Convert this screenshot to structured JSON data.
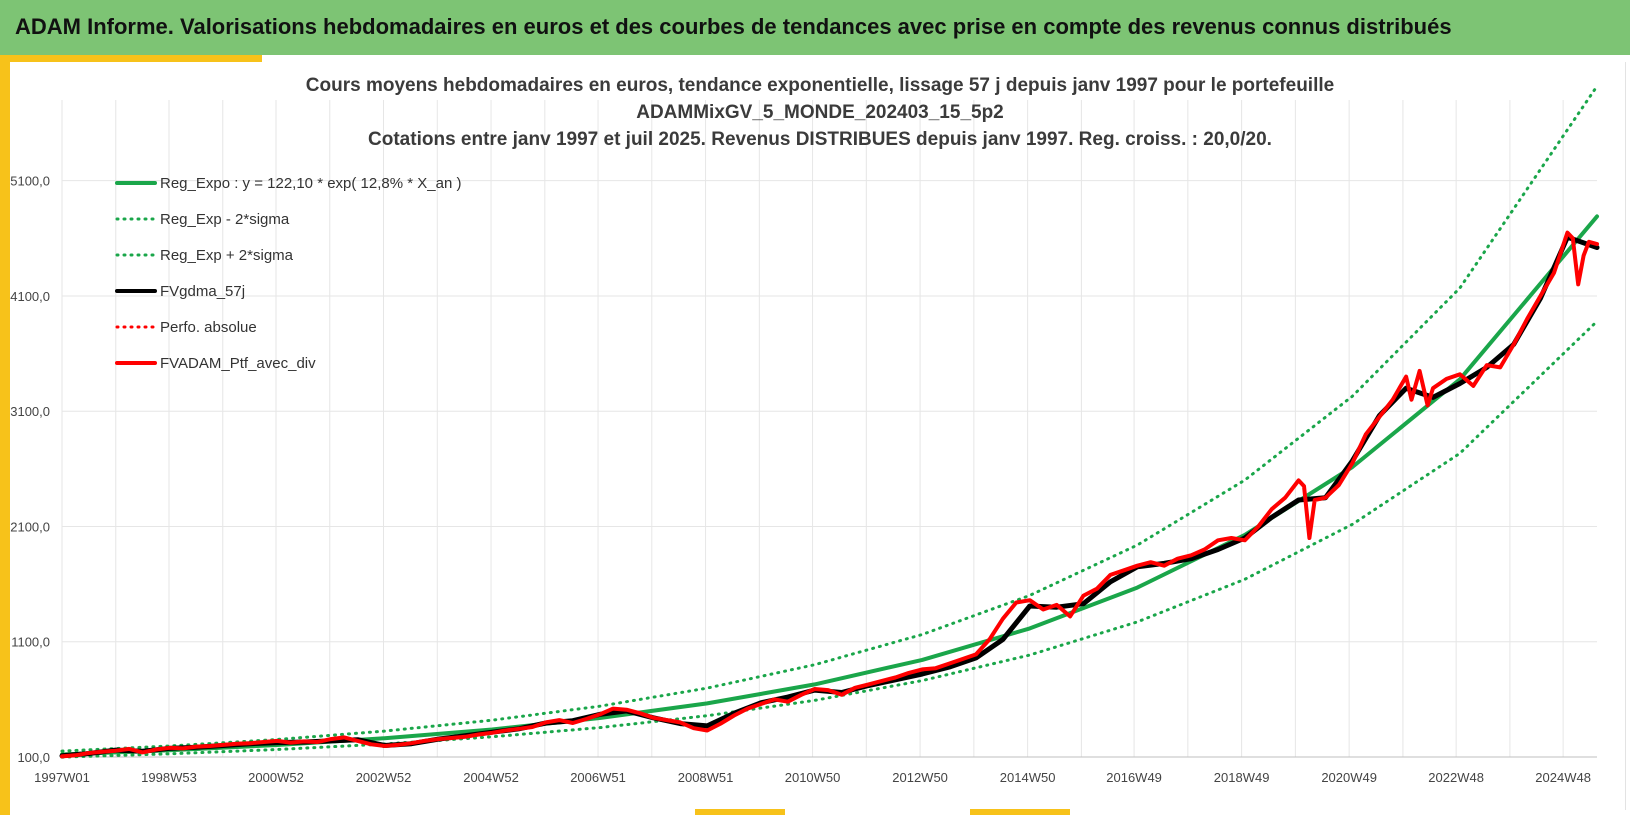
{
  "banner": {
    "title": "ADAM Informe. Valorisations hebdomadaires en euros et des courbes de tendances avec prise en compte des revenus connus distribués"
  },
  "colors": {
    "banner_bg": "#7dc474",
    "accent": "#f7c21a",
    "trend": "#1aa64a",
    "smoothed": "#000000",
    "portfolio": "#ff0000",
    "grid": "#e6e6e6"
  },
  "chart_data": {
    "type": "line",
    "title_lines": [
      "Cours moyens hebdomadaires  en euros, tendance exponentielle, lissage 57 j depuis janv 1997 pour le portefeuille",
      "ADAMMixGV_5_MONDE_202403_15_5p2",
      "Cotations  entre janv 1997 et juil 2025. Revenus DISTRIBUES depuis janv 1997. Reg. croiss. : 20,0/20."
    ],
    "xlabel": "",
    "ylabel": "",
    "x_range": [
      1997.0,
      2025.55
    ],
    "ylim": [
      100,
      5800
    ],
    "y_ticks": [
      100,
      1100,
      2100,
      3100,
      4100,
      5100
    ],
    "y_tick_labels": [
      "100,0",
      "1100,0",
      "2100,0",
      "3100,0",
      "4100,0",
      "5100,0"
    ],
    "x_ticks": [
      1997.0,
      1998.99,
      2000.98,
      2002.98,
      2004.98,
      2006.97,
      2008.97,
      2010.96,
      2012.96,
      2014.96,
      2016.94,
      2018.94,
      2020.94,
      2022.93,
      2024.92
    ],
    "x_tick_labels": [
      "1997W01",
      "1998W53",
      "2000W52",
      "2002W52",
      "2004W52",
      "2006W51",
      "2008W51",
      "2010W50",
      "2012W50",
      "2014W50",
      "2016W49",
      "2018W49",
      "2020W49",
      "2022W48",
      "2024W48"
    ],
    "grid": true,
    "legend_position": "top-left",
    "legend": [
      {
        "label": "Reg_Expo : y = 122,10 * exp( 12,8% *  X_an )",
        "style": "solid",
        "color": "#1aa64a",
        "width": 4
      },
      {
        "label": "Reg_Exp - 2*sigma",
        "style": "dotted",
        "color": "#1aa64a",
        "width": 3
      },
      {
        "label": "Reg_Exp + 2*sigma",
        "style": "dotted",
        "color": "#1aa64a",
        "width": 3
      },
      {
        "label": "FVgdma_57j",
        "style": "solid",
        "color": "#000000",
        "width": 4
      },
      {
        "label": "Perfo. absolue",
        "style": "dotted",
        "color": "#ff0000",
        "width": 3
      },
      {
        "label": "FVADAM_Ptf_avec_div",
        "style": "solid",
        "color": "#ff0000",
        "width": 4
      }
    ],
    "series": [
      {
        "name": "Reg_Expo : y = 122,10 * exp( 12,8% *  X_an )",
        "x": [
          1997,
          1999,
          2001,
          2003,
          2005,
          2007,
          2009,
          2011,
          2013,
          2015,
          2017,
          2019,
          2021,
          2023,
          2025.55
        ],
        "values": [
          122,
          158,
          204,
          263,
          339,
          438,
          565,
          730,
          942,
          1216,
          1570,
          2027,
          2616,
          3377,
          4790
        ]
      },
      {
        "name": "Reg_Exp - 2*sigma",
        "x": [
          1997,
          1999,
          2001,
          2003,
          2005,
          2007,
          2009,
          2011,
          2013,
          2015,
          2017,
          2019,
          2021,
          2023,
          2025.55
        ],
        "values": [
          99,
          128,
          165,
          213,
          275,
          355,
          458,
          591,
          763,
          985,
          1272,
          1642,
          2119,
          2735,
          3880
        ]
      },
      {
        "name": "Reg_Exp + 2*sigma",
        "x": [
          1997,
          1999,
          2001,
          2003,
          2005,
          2007,
          2009,
          2011,
          2013,
          2015,
          2017,
          2019,
          2021,
          2023,
          2025.55
        ],
        "values": [
          151,
          195,
          252,
          325,
          419,
          541,
          698,
          901,
          1163,
          1502,
          1938,
          2502,
          3230,
          4169,
          5920
        ]
      },
      {
        "name": "FVgdma_57j",
        "x": [
          1997.0,
          1997.5,
          1998.0,
          1998.5,
          1999.0,
          1999.5,
          2000.0,
          2000.5,
          2001.0,
          2001.5,
          2002.0,
          2002.5,
          2003.0,
          2003.5,
          2004.0,
          2004.5,
          2005.0,
          2005.5,
          2006.0,
          2006.5,
          2007.0,
          2007.5,
          2008.0,
          2008.5,
          2009.0,
          2009.5,
          2010.0,
          2010.5,
          2011.0,
          2011.5,
          2012.0,
          2012.5,
          2013.0,
          2013.5,
          2014.0,
          2014.5,
          2015.0,
          2015.5,
          2016.0,
          2016.5,
          2017.0,
          2017.5,
          2018.0,
          2018.5,
          2019.0,
          2019.5,
          2020.0,
          2020.5,
          2021.0,
          2021.5,
          2022.0,
          2022.5,
          2023.0,
          2023.5,
          2024.0,
          2024.5,
          2025.0,
          2025.55
        ],
        "values": [
          110,
          130,
          160,
          150,
          175,
          185,
          200,
          215,
          225,
          230,
          240,
          250,
          200,
          215,
          255,
          285,
          315,
          345,
          395,
          415,
          470,
          500,
          440,
          390,
          370,
          480,
          570,
          620,
          680,
          660,
          720,
          770,
          820,
          880,
          960,
          1120,
          1410,
          1400,
          1430,
          1620,
          1750,
          1780,
          1820,
          1900,
          2000,
          2180,
          2330,
          2350,
          2670,
          3060,
          3300,
          3220,
          3340,
          3480,
          3680,
          4080,
          4610,
          4520
        ]
      },
      {
        "name": "FVADAM_Ptf_avec_div",
        "x": [
          1997.0,
          1997.25,
          1997.5,
          1997.75,
          1998.0,
          1998.25,
          1998.5,
          1998.75,
          1999.0,
          1999.25,
          1999.5,
          1999.75,
          2000.0,
          2000.25,
          2000.5,
          2000.75,
          2001.0,
          2001.25,
          2001.5,
          2001.75,
          2002.0,
          2002.25,
          2002.5,
          2002.75,
          2003.0,
          2003.25,
          2003.5,
          2003.75,
          2004.0,
          2004.25,
          2004.5,
          2004.75,
          2005.0,
          2005.25,
          2005.5,
          2005.75,
          2006.0,
          2006.25,
          2006.5,
          2006.75,
          2007.0,
          2007.25,
          2007.5,
          2007.75,
          2008.0,
          2008.25,
          2008.5,
          2008.75,
          2009.0,
          2009.25,
          2009.5,
          2009.75,
          2010.0,
          2010.25,
          2010.5,
          2010.75,
          2011.0,
          2011.25,
          2011.5,
          2011.75,
          2012.0,
          2012.25,
          2012.5,
          2012.75,
          2013.0,
          2013.25,
          2013.5,
          2013.75,
          2014.0,
          2014.25,
          2014.5,
          2014.75,
          2015.0,
          2015.25,
          2015.5,
          2015.75,
          2016.0,
          2016.25,
          2016.5,
          2016.75,
          2017.0,
          2017.25,
          2017.5,
          2017.75,
          2018.0,
          2018.25,
          2018.5,
          2018.75,
          2019.0,
          2019.25,
          2019.5,
          2019.75,
          2020.0,
          2020.1,
          2020.2,
          2020.3,
          2020.5,
          2020.75,
          2021.0,
          2021.25,
          2021.5,
          2021.75,
          2022.0,
          2022.1,
          2022.25,
          2022.4,
          2022.5,
          2022.75,
          2023.0,
          2023.25,
          2023.5,
          2023.75,
          2024.0,
          2024.25,
          2024.5,
          2024.75,
          2025.0,
          2025.1,
          2025.2,
          2025.3,
          2025.4,
          2025.55
        ],
        "values": [
          105,
          115,
          135,
          145,
          155,
          170,
          140,
          165,
          180,
          175,
          190,
          195,
          205,
          215,
          220,
          230,
          240,
          225,
          235,
          230,
          255,
          270,
          240,
          210,
          195,
          205,
          220,
          240,
          255,
          265,
          275,
          295,
          310,
          330,
          345,
          360,
          400,
          420,
          395,
          430,
          470,
          520,
          510,
          480,
          440,
          420,
          400,
          350,
          330,
          390,
          460,
          520,
          560,
          600,
          580,
          640,
          690,
          680,
          640,
          700,
          730,
          760,
          790,
          830,
          860,
          870,
          910,
          950,
          990,
          1120,
          1300,
          1440,
          1460,
          1380,
          1420,
          1320,
          1500,
          1560,
          1680,
          1720,
          1760,
          1790,
          1760,
          1820,
          1850,
          1900,
          1980,
          2000,
          1980,
          2100,
          2250,
          2350,
          2500,
          2450,
          2000,
          2330,
          2350,
          2460,
          2650,
          2900,
          3050,
          3200,
          3400,
          3200,
          3450,
          3150,
          3300,
          3380,
          3420,
          3320,
          3500,
          3480,
          3680,
          3900,
          4100,
          4300,
          4650,
          4600,
          4200,
          4450,
          4570,
          4550
        ]
      }
    ]
  }
}
